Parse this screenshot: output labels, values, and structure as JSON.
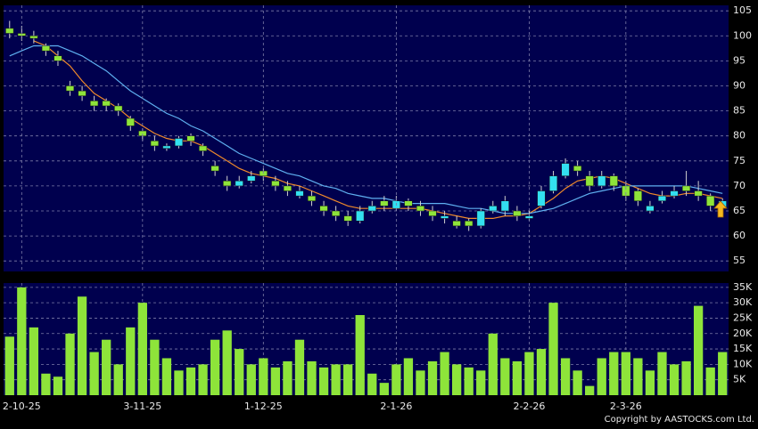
{
  "chart_data": [
    {
      "type": "candlestick",
      "open": [
        101.5,
        100.5,
        100,
        98,
        96,
        90,
        89,
        87,
        87,
        86,
        83.5,
        81,
        79,
        77.5,
        78,
        80,
        78,
        74,
        71,
        70,
        71,
        73,
        71,
        70,
        68,
        68,
        66,
        65,
        64,
        63,
        65,
        67,
        65.5,
        67,
        66,
        65,
        63.5,
        63,
        63,
        62,
        65,
        65,
        65,
        63.5,
        66,
        69,
        72,
        74,
        72,
        70,
        72,
        70,
        69,
        65,
        67,
        68,
        70,
        69,
        68,
        65.5
      ],
      "high": [
        103,
        102,
        101,
        98.5,
        97,
        91,
        90,
        88,
        87.5,
        86.5,
        84,
        81.5,
        80,
        78.5,
        80,
        80.5,
        78.5,
        75,
        72,
        72,
        73,
        73.5,
        72,
        71,
        70,
        69,
        67,
        66,
        65,
        66,
        67,
        68,
        68,
        67.5,
        67,
        66,
        65,
        64,
        63.5,
        65.5,
        67,
        68,
        66,
        65,
        70,
        73,
        75.5,
        75,
        73,
        73,
        72.5,
        71,
        69.5,
        67,
        69,
        70,
        73,
        71,
        68.5,
        67.5
      ],
      "low": [
        99.5,
        99,
        98.5,
        96,
        94,
        88,
        87,
        85,
        85,
        84,
        81,
        79,
        77,
        77,
        77.5,
        78,
        76,
        72,
        69,
        69.5,
        70.5,
        71,
        69,
        68,
        67.5,
        66,
        64,
        63,
        62,
        62.5,
        64.5,
        65,
        65,
        65,
        64,
        63,
        62.5,
        61.5,
        61,
        61.5,
        64.5,
        64,
        63,
        63,
        65.5,
        68.5,
        71.5,
        72,
        69,
        69.5,
        69,
        67,
        66,
        64.5,
        66.5,
        67.5,
        68,
        67,
        65,
        65
      ],
      "close": [
        100.5,
        100,
        99.5,
        97,
        95,
        89,
        88,
        86,
        86,
        85,
        82,
        80,
        78,
        78,
        79.5,
        79,
        77,
        73,
        70,
        71,
        72,
        72,
        70,
        69,
        69,
        67,
        65,
        64,
        63,
        65,
        66,
        66,
        67,
        66,
        65,
        64,
        64,
        62,
        62,
        65,
        66,
        67,
        64,
        64,
        69,
        72,
        74.5,
        73,
        70,
        72,
        70,
        68,
        67,
        66,
        68,
        69,
        69,
        68,
        66,
        67
      ],
      "up_color": "#33e0f0",
      "down_color": "#8ee43a",
      "series": [
        {
          "color": "#f08a2a",
          "values": [
            null,
            null,
            99,
            98,
            96,
            94,
            91,
            88.5,
            87,
            85.5,
            83.5,
            82,
            80.5,
            79.5,
            79,
            79,
            78,
            76.5,
            75,
            73.5,
            72.5,
            72,
            71.5,
            70.5,
            70,
            69,
            68,
            67,
            66,
            65.5,
            65.5,
            65.5,
            65.5,
            65.5,
            65.5,
            65,
            64.5,
            64,
            63.5,
            63.5,
            63.5,
            64,
            64,
            64.5,
            66,
            67.5,
            69.5,
            71,
            71.5,
            72,
            71.5,
            70.5,
            69.5,
            68.5,
            68,
            68,
            68.5,
            68.5,
            68,
            67.5
          ]
        },
        {
          "color": "#5fb0f0",
          "values": [
            96,
            97,
            98,
            98,
            98,
            97,
            96,
            94.5,
            93,
            91,
            89,
            87.5,
            86,
            84.5,
            83.5,
            82,
            81,
            79.5,
            78,
            76.5,
            75.5,
            74.5,
            73.5,
            72.5,
            72,
            71,
            70,
            69.5,
            68.5,
            68,
            67.5,
            67.5,
            67,
            66.5,
            66.5,
            66.5,
            66.5,
            66,
            65.5,
            65.5,
            65,
            64.5,
            64.5,
            64.5,
            65,
            65.5,
            66.5,
            67.5,
            68.5,
            69,
            69.5,
            70,
            70,
            70,
            70,
            70,
            70,
            69.5,
            69,
            68.5
          ]
        }
      ],
      "ylim": [
        52.9,
        106.1
      ],
      "yticks": [
        55,
        60,
        65,
        70,
        75,
        80,
        85,
        90,
        95,
        100,
        105
      ],
      "grid": true
    },
    {
      "type": "bar",
      "categories": [
        null,
        "2-10-25",
        null,
        null,
        null,
        null,
        null,
        null,
        null,
        null,
        null,
        "3-11-25",
        null,
        null,
        null,
        null,
        null,
        null,
        null,
        null,
        null,
        "1-12-25",
        null,
        null,
        null,
        null,
        null,
        null,
        null,
        null,
        null,
        null,
        "2-1-26",
        null,
        null,
        null,
        null,
        null,
        null,
        null,
        null,
        null,
        null,
        "2-2-26",
        null,
        null,
        null,
        null,
        null,
        null,
        null,
        "2-3-26",
        null,
        null,
        null,
        null,
        null,
        null,
        null,
        null
      ],
      "values": [
        19,
        35,
        22,
        7,
        6,
        20,
        32,
        14,
        18,
        10,
        22,
        30,
        18,
        12,
        8,
        9,
        10,
        18,
        21,
        15,
        10,
        12,
        9,
        11,
        18,
        11,
        9,
        10,
        10,
        26,
        7,
        4,
        10,
        12,
        8,
        11,
        14,
        10,
        9,
        8,
        20,
        12,
        11,
        14,
        15,
        30,
        12,
        8,
        3,
        12,
        14,
        14,
        12,
        8,
        14,
        10,
        11,
        29,
        9,
        14
      ],
      "color": "#8ee43a",
      "ylim": [
        0,
        36.4
      ],
      "yticks": [
        {
          "value": 5,
          "label": "5K"
        },
        {
          "value": 10,
          "label": "10K"
        },
        {
          "value": 15,
          "label": "15K"
        },
        {
          "value": 20,
          "label": "20K"
        },
        {
          "value": 25,
          "label": "25K"
        },
        {
          "value": 30,
          "label": "30K"
        },
        {
          "value": 35,
          "label": "35K"
        }
      ],
      "grid": true
    }
  ],
  "copyright": "Copyright by AASTOCKS.com Ltd."
}
